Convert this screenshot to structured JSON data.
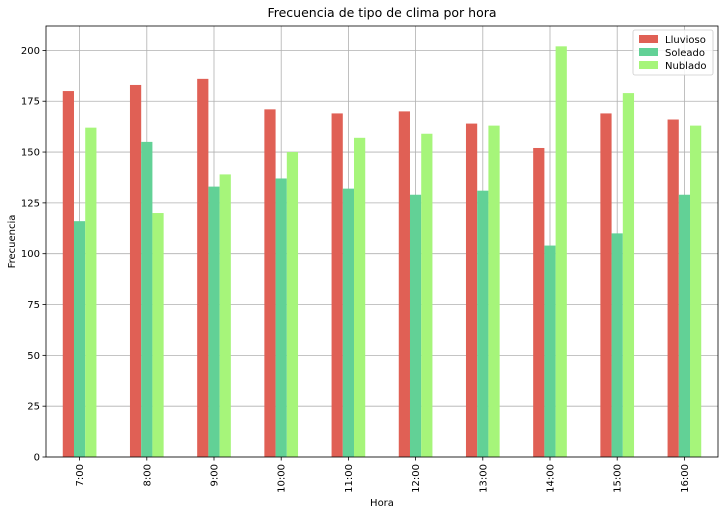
{
  "chart_data": {
    "type": "bar",
    "title": "Frecuencia de tipo de clima por hora",
    "xlabel": "Hora",
    "ylabel": "Frecuencia",
    "categories": [
      "7:00",
      "8:00",
      "9:00",
      "10:00",
      "11:00",
      "12:00",
      "13:00",
      "14:00",
      "15:00",
      "16:00"
    ],
    "series": [
      {
        "name": "Lluvioso",
        "color": "#e06055",
        "values": [
          180,
          183,
          186,
          171,
          169,
          170,
          164,
          152,
          169,
          166
        ]
      },
      {
        "name": "Soleado",
        "color": "#62d196",
        "values": [
          116,
          155,
          133,
          137,
          132,
          129,
          131,
          104,
          110,
          129
        ]
      },
      {
        "name": "Nublado",
        "color": "#a6f57a",
        "values": [
          162,
          120,
          139,
          150,
          157,
          159,
          163,
          202,
          179,
          163
        ]
      }
    ],
    "ylim": [
      0,
      212
    ],
    "yticks": [
      0,
      25,
      50,
      75,
      100,
      125,
      150,
      175,
      200
    ],
    "grid": true,
    "legend": "top-right"
  }
}
